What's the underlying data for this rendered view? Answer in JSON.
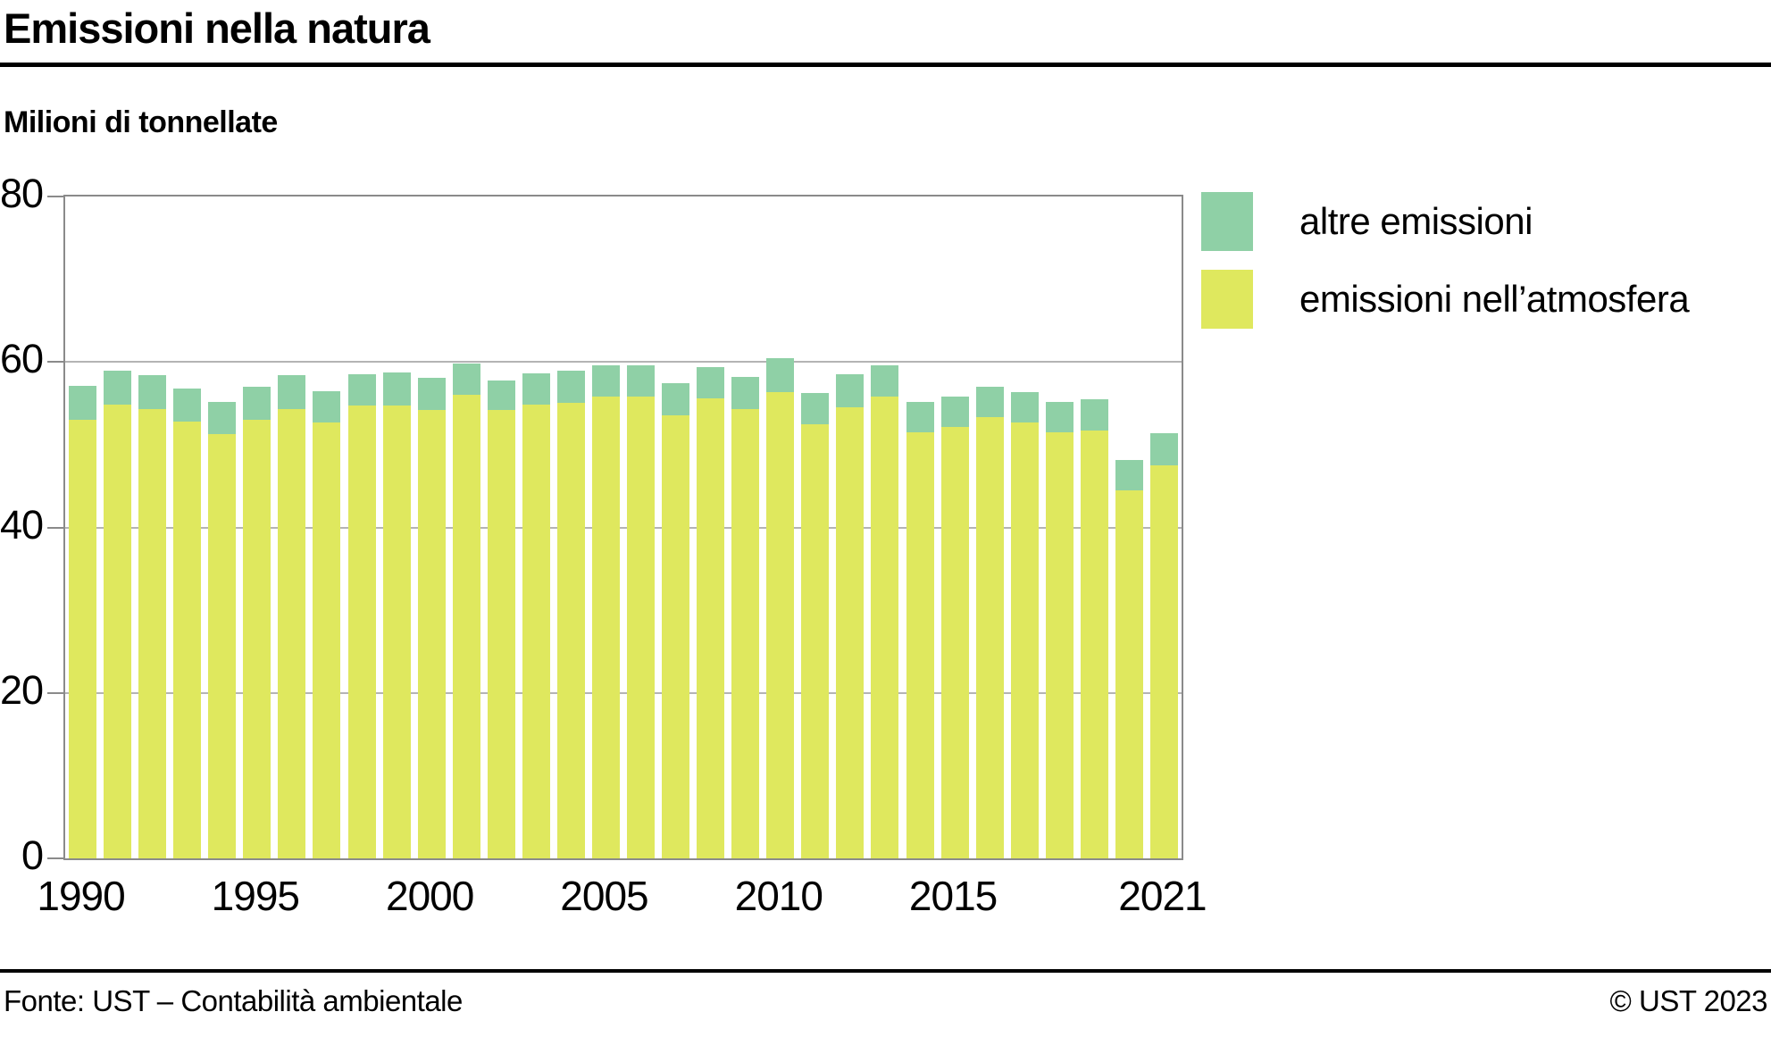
{
  "header": {
    "title": "Emissioni nella natura",
    "subtitle": "Milioni di tonnellate"
  },
  "legend": [
    {
      "label": "altre emissioni",
      "color": "#8fd0a6"
    },
    {
      "label": "emissioni nell’atmosfera",
      "color": "#dfe85e"
    }
  ],
  "footer": {
    "source": "Fonte: UST – Contabilità ambientale",
    "copyright": "© UST 2023"
  },
  "chart_data": {
    "type": "bar",
    "stacked": true,
    "title": "Emissioni nella natura",
    "ylabel": "Milioni di tonnellate",
    "ylim": [
      0,
      80
    ],
    "yticks": [
      0,
      20,
      40,
      60,
      80
    ],
    "grid": "horizontal",
    "legend_position": "top-right",
    "categories": [
      1990,
      1991,
      1992,
      1993,
      1994,
      1995,
      1996,
      1997,
      1998,
      1999,
      2000,
      2001,
      2002,
      2003,
      2004,
      2005,
      2006,
      2007,
      2008,
      2009,
      2010,
      2011,
      2012,
      2013,
      2014,
      2015,
      2016,
      2017,
      2018,
      2019,
      2020,
      2021
    ],
    "xticks": [
      {
        "label": "1990",
        "index": 0
      },
      {
        "label": "1995",
        "index": 5
      },
      {
        "label": "2000",
        "index": 10
      },
      {
        "label": "2005",
        "index": 15
      },
      {
        "label": "2010",
        "index": 20
      },
      {
        "label": "2015",
        "index": 25
      },
      {
        "label": "2021",
        "index": 31
      }
    ],
    "series": [
      {
        "name": "emissioni nell’atmosfera",
        "color": "#dfe85e",
        "values": [
          53.0,
          54.8,
          54.3,
          52.8,
          51.3,
          53.0,
          54.3,
          52.7,
          54.7,
          54.7,
          54.2,
          56.0,
          54.2,
          54.8,
          55.1,
          55.8,
          55.8,
          53.6,
          55.6,
          54.3,
          56.4,
          52.5,
          54.5,
          55.8,
          51.5,
          52.2,
          53.3,
          52.7,
          51.5,
          51.7,
          44.5,
          47.5
        ]
      },
      {
        "name": "altre emissioni",
        "color": "#8fd0a6",
        "values": [
          4.1,
          4.2,
          4.1,
          4.0,
          3.9,
          4.0,
          4.1,
          3.8,
          3.8,
          4.0,
          3.9,
          3.8,
          3.6,
          3.8,
          3.8,
          3.8,
          3.8,
          3.8,
          3.8,
          3.9,
          4.1,
          3.8,
          4.0,
          3.8,
          3.7,
          3.6,
          3.7,
          3.7,
          3.7,
          3.8,
          3.6,
          3.9
        ]
      }
    ]
  }
}
